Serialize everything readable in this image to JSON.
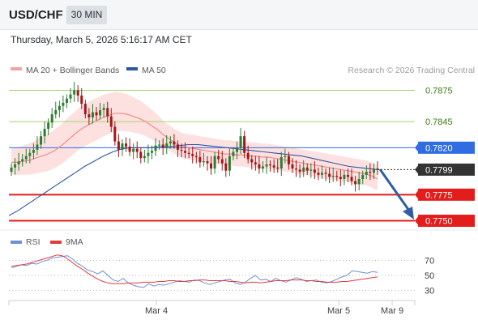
{
  "header": {
    "symbol": "USD/CHF",
    "timeframe": "30 MIN"
  },
  "datetime": "Thursday, March 5, 2026 5:16:17 AM CET",
  "legend": {
    "bb_label": "MA 20 + Bollinger Bands",
    "ma50_label": "MA 50",
    "rsi_label": "RSI",
    "rsi_ma_label": "9MA",
    "attribution": "Research © 2026 Trading Central"
  },
  "colors": {
    "bb_fill": "#fcd9d9",
    "ma20": "#f08a8a",
    "ma50": "#2e55a3",
    "bull": "#2e7d32",
    "bear": "#a01818",
    "resistance": "#a5d16b",
    "pivot": "#2f6de1",
    "support": "#e31c1c",
    "current": "#333333",
    "rsi": "#6f8fd8",
    "rsi_ma": "#e23b3b",
    "arrow": "#2e5fa3"
  },
  "chart_data": {
    "type": "candlestick",
    "price_ylim": [
      0.7738,
      0.7887
    ],
    "x_tick_labels": [
      "Mar 4",
      "Mar 5",
      "Mar 9"
    ],
    "levels": [
      {
        "value": 0.7875,
        "label": "0.7875",
        "kind": "resistance"
      },
      {
        "value": 0.7845,
        "label": "0.7845",
        "kind": "resistance"
      },
      {
        "value": 0.782,
        "label": "0.7820",
        "kind": "pivot"
      },
      {
        "value": 0.7799,
        "label": "0.7799",
        "kind": "current"
      },
      {
        "value": 0.7775,
        "label": "0.7775",
        "kind": "support"
      },
      {
        "value": 0.775,
        "label": "0.7750",
        "kind": "support"
      }
    ],
    "candles_close": [
      0.7801,
      0.7804,
      0.7807,
      0.7809,
      0.7812,
      0.7815,
      0.7818,
      0.7823,
      0.7831,
      0.7838,
      0.7844,
      0.7852,
      0.7856,
      0.786,
      0.7863,
      0.7867,
      0.7871,
      0.7875,
      0.787,
      0.7862,
      0.7852,
      0.7849,
      0.7854,
      0.7851,
      0.7856,
      0.7858,
      0.785,
      0.784,
      0.7826,
      0.7818,
      0.7824,
      0.7821,
      0.7816,
      0.7819,
      0.7816,
      0.781,
      0.7812,
      0.7815,
      0.7817,
      0.7822,
      0.7823,
      0.782,
      0.7824,
      0.7826,
      0.7823,
      0.7818,
      0.7817,
      0.7815,
      0.7814,
      0.7812,
      0.7811,
      0.7806,
      0.7807,
      0.7805,
      0.78,
      0.7812,
      0.7809,
      0.7805,
      0.7798,
      0.7812,
      0.7816,
      0.782,
      0.7831,
      0.7815,
      0.7809,
      0.7806,
      0.7804,
      0.78,
      0.7802,
      0.7804,
      0.7803,
      0.7801,
      0.78,
      0.7811,
      0.7812,
      0.7804,
      0.78,
      0.7799,
      0.7797,
      0.7801,
      0.7798,
      0.7799,
      0.7796,
      0.7794,
      0.7796,
      0.7795,
      0.7792,
      0.7793,
      0.7792,
      0.779,
      0.7794,
      0.7792,
      0.7788,
      0.7785,
      0.779,
      0.7794,
      0.7797,
      0.7796,
      0.78,
      0.7799
    ],
    "candles_open": [
      0.7797,
      0.7801,
      0.7804,
      0.7807,
      0.7809,
      0.7812,
      0.7815,
      0.7818,
      0.7823,
      0.7831,
      0.7838,
      0.7844,
      0.7852,
      0.7856,
      0.786,
      0.7863,
      0.7867,
      0.7871,
      0.7875,
      0.787,
      0.7862,
      0.7852,
      0.7849,
      0.7854,
      0.7851,
      0.7856,
      0.7858,
      0.785,
      0.784,
      0.7826,
      0.7818,
      0.7824,
      0.7821,
      0.7816,
      0.7819,
      0.7816,
      0.781,
      0.7812,
      0.7815,
      0.7817,
      0.7822,
      0.7823,
      0.782,
      0.7824,
      0.7826,
      0.7823,
      0.7818,
      0.7817,
      0.7815,
      0.7814,
      0.7812,
      0.7811,
      0.7806,
      0.7807,
      0.7805,
      0.78,
      0.7812,
      0.7809,
      0.7805,
      0.7798,
      0.7812,
      0.7816,
      0.782,
      0.7831,
      0.7815,
      0.7809,
      0.7806,
      0.7804,
      0.78,
      0.7802,
      0.7804,
      0.7803,
      0.7801,
      0.78,
      0.7811,
      0.7812,
      0.7804,
      0.78,
      0.7799,
      0.7797,
      0.7801,
      0.7798,
      0.7799,
      0.7796,
      0.7794,
      0.7796,
      0.7795,
      0.7792,
      0.7793,
      0.7792,
      0.779,
      0.7794,
      0.7792,
      0.7788,
      0.7785,
      0.779,
      0.7794,
      0.7797,
      0.7796,
      0.78
    ],
    "ma20": [
      0.7806,
      0.7806,
      0.7807,
      0.7808,
      0.781,
      0.7812,
      0.7814,
      0.7817,
      0.7821,
      0.7826,
      0.7831,
      0.7836,
      0.784,
      0.7843,
      0.7846,
      0.7849,
      0.7851,
      0.7853,
      0.7853,
      0.7852,
      0.785,
      0.7848,
      0.7845,
      0.7841,
      0.7837,
      0.7832,
      0.7828,
      0.7824,
      0.7821,
      0.782,
      0.7819,
      0.7818,
      0.7817,
      0.7816,
      0.7815,
      0.7814,
      0.7814,
      0.7813,
      0.7813,
      0.7812,
      0.7812,
      0.7811,
      0.7811,
      0.781,
      0.7809,
      0.7808,
      0.7807,
      0.7806,
      0.7805,
      0.7804,
      0.7803,
      0.7802,
      0.7801,
      0.78,
      0.7799,
      0.7798,
      0.7797,
      0.7796,
      0.7795,
      0.7793,
      0.779
    ],
    "ma50": [
      0.7755,
      0.776,
      0.7766,
      0.7772,
      0.7778,
      0.7784,
      0.779,
      0.7796,
      0.7802,
      0.7807,
      0.7812,
      0.7816,
      0.7819,
      0.782,
      0.782,
      0.782,
      0.7821,
      0.7821,
      0.7822,
      0.7823,
      0.7823,
      0.7822,
      0.7821,
      0.782,
      0.7819,
      0.7818,
      0.7817,
      0.7816,
      0.7815,
      0.7814,
      0.7813,
      0.7812,
      0.781,
      0.7808,
      0.7806,
      0.7804,
      0.7802,
      0.7801,
      0.78,
      0.7799
    ],
    "rsi_ylim": [
      20,
      80
    ],
    "rsi_levels": [
      70,
      50,
      30
    ],
    "rsi": [
      60,
      62,
      64,
      63,
      66,
      65,
      68,
      70,
      73,
      74,
      75,
      76,
      72,
      66,
      62,
      57,
      55,
      52,
      56,
      50,
      44,
      42,
      46,
      40,
      37,
      35,
      34,
      39,
      36,
      38,
      37,
      39,
      41,
      43,
      42,
      41,
      44,
      43,
      40,
      38,
      40,
      42,
      44,
      45,
      40,
      38,
      41,
      46,
      50,
      44,
      45,
      42,
      46,
      43,
      41,
      44,
      47,
      45,
      42,
      43,
      44,
      41,
      40,
      42,
      45,
      48,
      50,
      56,
      55,
      54,
      53,
      55,
      54
    ],
    "rsi_ma": [
      62,
      63,
      64,
      65,
      67,
      69,
      71,
      73,
      75,
      77,
      76,
      72,
      67,
      62,
      58,
      53,
      49,
      45,
      42,
      40,
      39,
      39,
      39,
      40,
      40,
      40,
      41,
      41,
      41,
      42,
      42,
      43,
      43,
      42,
      42,
      43,
      43,
      44,
      44,
      43,
      43,
      43,
      43,
      42,
      42,
      41,
      40,
      41,
      41,
      40,
      41,
      42,
      43,
      43,
      43,
      44,
      44,
      44,
      43,
      43,
      42,
      42,
      41,
      41,
      41,
      42,
      42,
      43,
      44,
      45,
      46,
      47,
      48
    ]
  }
}
